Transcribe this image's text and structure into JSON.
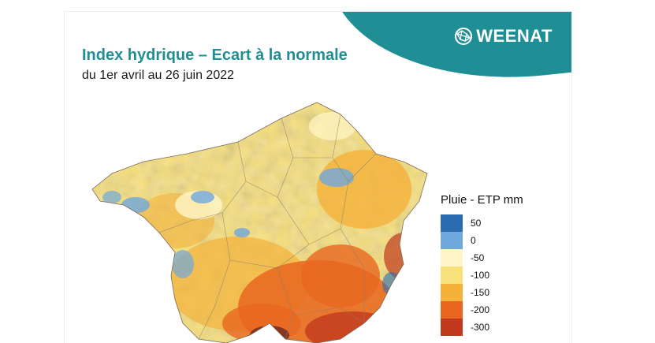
{
  "brand": {
    "name": "WEENAT",
    "color": "#1f8f95"
  },
  "title": "Index hydrique – Ecart à la normale",
  "subtitle": "du 1er avril au 26 juin 2022",
  "legend": {
    "title": "Pluie - ETP mm",
    "items": [
      {
        "label": "50",
        "color": "#2b6cb0"
      },
      {
        "label": "0",
        "color": "#6fa8dc"
      },
      {
        "label": "-50",
        "color": "#fff6c8"
      },
      {
        "label": "-100",
        "color": "#f8e07a"
      },
      {
        "label": "-150",
        "color": "#f4b23b"
      },
      {
        "label": "-200",
        "color": "#e8661f"
      },
      {
        "label": "-300",
        "color": "#c0391e"
      }
    ]
  }
}
